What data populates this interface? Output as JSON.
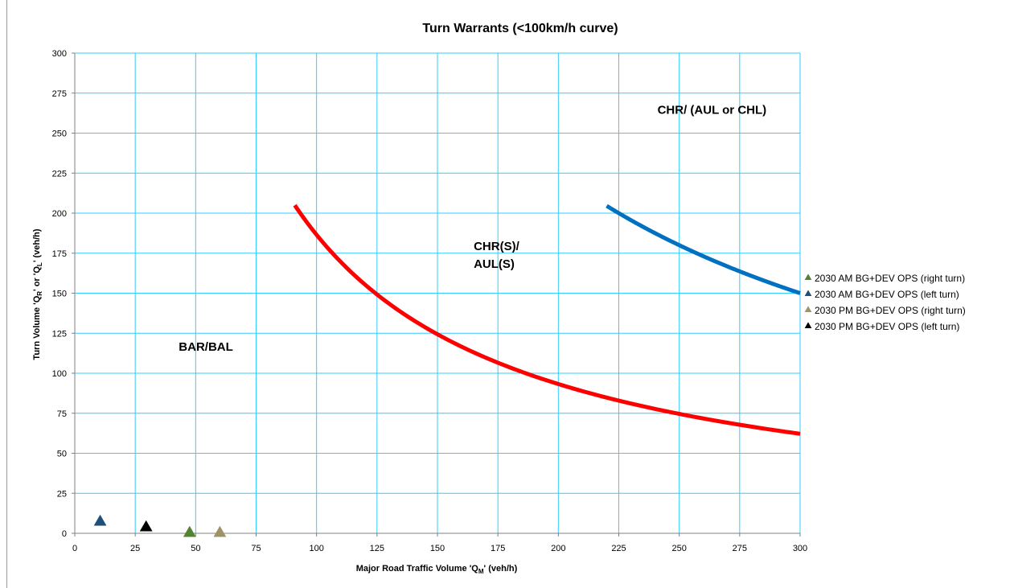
{
  "chart_data": {
    "type": "line",
    "title": "Turn Warrants (<100km/h curve)",
    "xlabel": {
      "prefix": "Major Road Traffic Volume 'Q",
      "sub": "M",
      "suffix": "' (veh/h)"
    },
    "ylabel": {
      "p1": "Turn Volume 'Q",
      "s1": "R",
      "p2": "' or 'Q",
      "s2": "L",
      "p3": "' (veh/h)"
    },
    "xlim": [
      0,
      300
    ],
    "ylim": [
      0,
      300
    ],
    "xticks": [
      0,
      25,
      50,
      75,
      100,
      125,
      150,
      175,
      200,
      225,
      250,
      275,
      300
    ],
    "yticks": [
      0,
      25,
      50,
      75,
      100,
      125,
      150,
      175,
      200,
      225,
      250,
      275,
      300
    ],
    "grid": true,
    "gridColor": "#33ccff",
    "curves": [
      {
        "color": "#ff0000",
        "k": 18650,
        "xstart": 91,
        "xend": 300
      },
      {
        "color": "#0070c0",
        "k": 45000,
        "xstart": 220,
        "xend": 300
      }
    ],
    "regions": [
      {
        "lines": [
          "BAR/BAL"
        ],
        "x": 43,
        "y": 114
      },
      {
        "lines": [
          "CHR(S)/",
          "AUL(S)"
        ],
        "x": 165,
        "y": 177
      },
      {
        "lines": [
          "CHR/ (AUL or CHL)"
        ],
        "x": 241,
        "y": 262
      }
    ],
    "series": [
      {
        "name": "2030 AM BG+DEV OPS (right turn)",
        "color": "#548235",
        "x": [
          47.5
        ],
        "y": [
          0
        ]
      },
      {
        "name": "2030 AM BG+DEV OPS (left turn)",
        "color": "#1f4e79",
        "x": [
          10.5
        ],
        "y": [
          7
        ]
      },
      {
        "name": "2030 PM BG+DEV OPS (right turn)",
        "color": "#9e9368",
        "x": [
          60
        ],
        "y": [
          0
        ]
      },
      {
        "name": "2030 PM BG+DEV OPS (left turn)",
        "color": "#000000",
        "x": [
          29.5
        ],
        "y": [
          3.5
        ]
      }
    ],
    "legend": "right"
  }
}
